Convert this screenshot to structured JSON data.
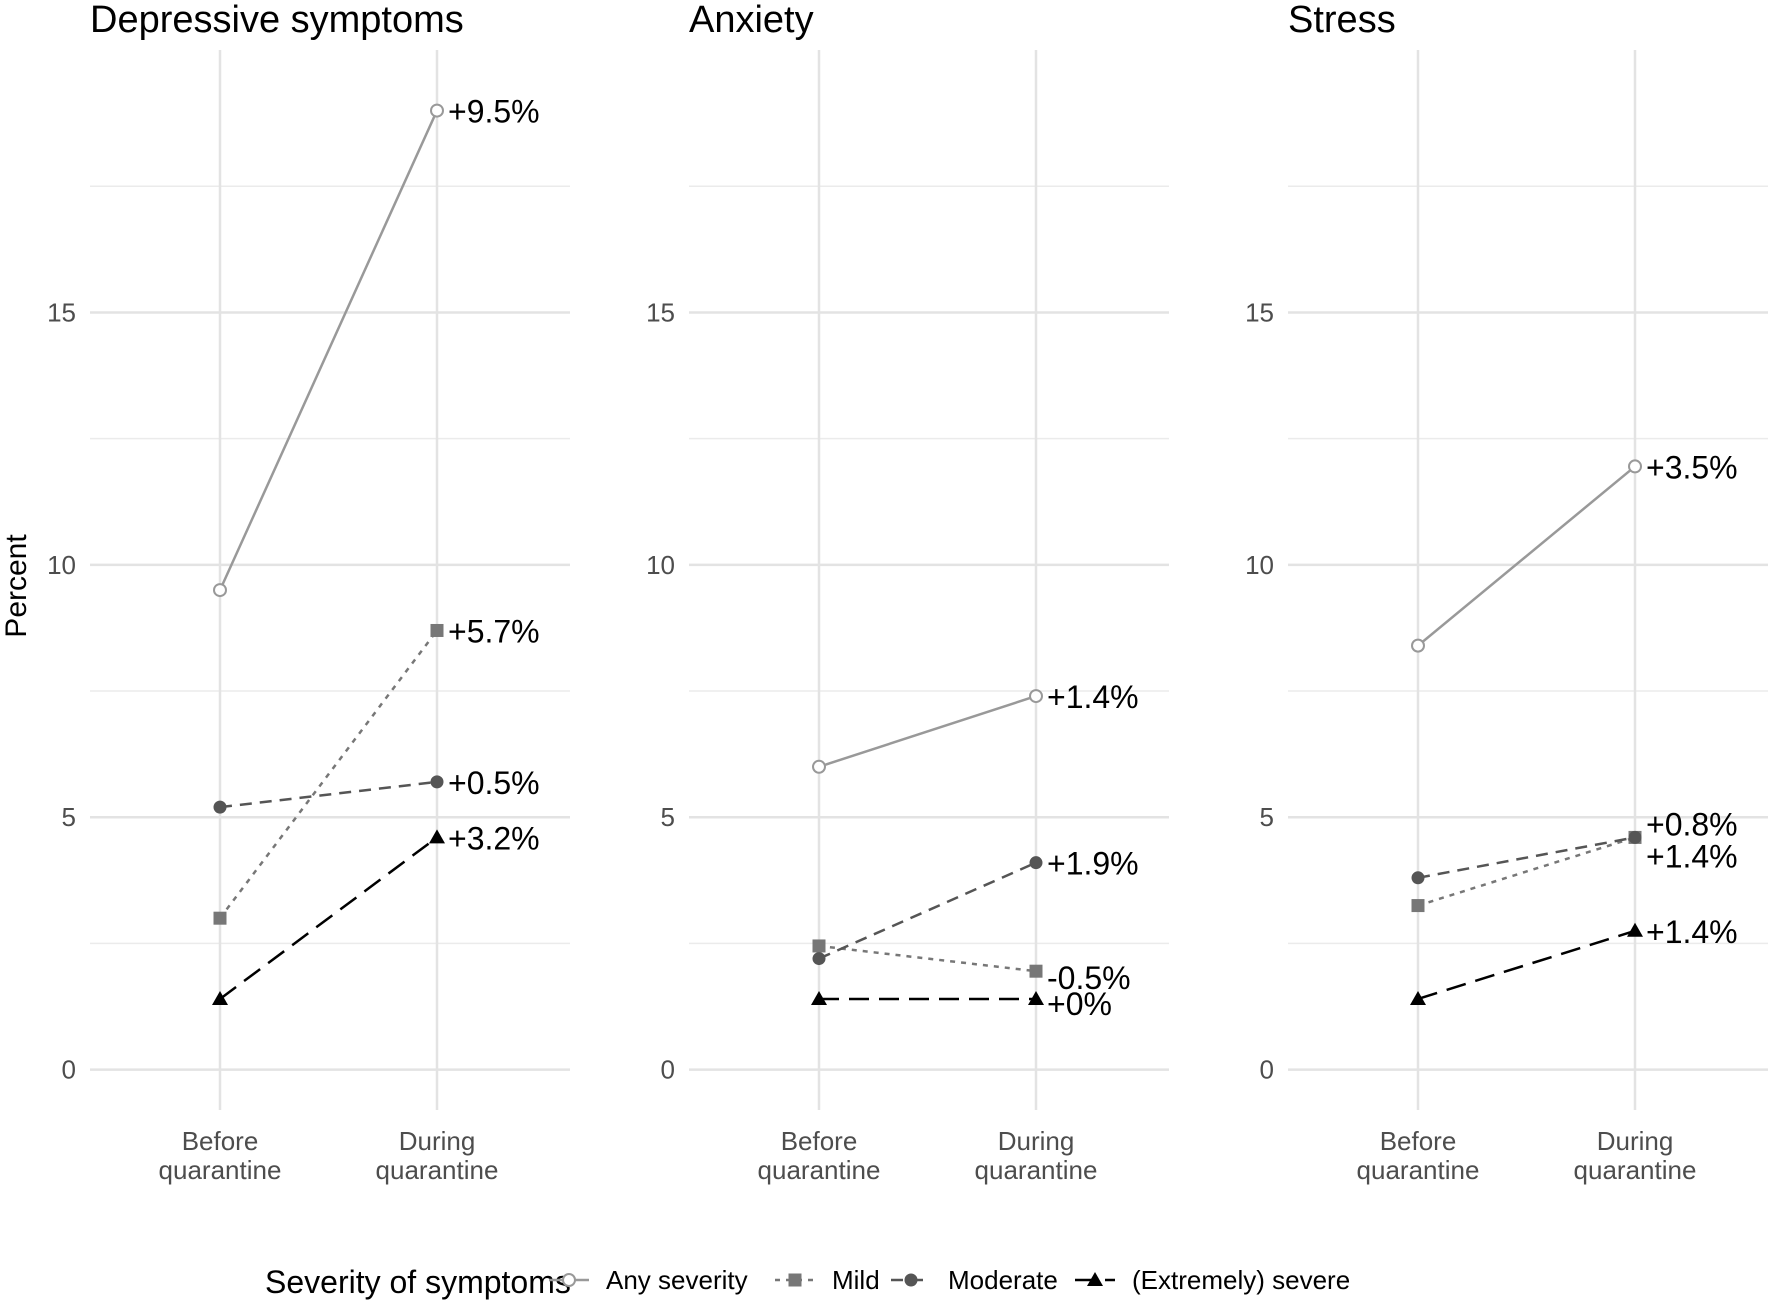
{
  "chart_data": {
    "type": "line",
    "ylabel": "Percent",
    "ylim": [
      -0.8,
      20.2
    ],
    "yticks": [
      0,
      5,
      10,
      15
    ],
    "x": [
      "Before\nquarantine",
      "During\nquarantine"
    ],
    "legend": {
      "title": "Severity of symptoms",
      "position": "bottom",
      "entries": [
        "Any severity",
        "Mild",
        "Moderate",
        "(Extremely) severe"
      ]
    },
    "series_styles": [
      {
        "name": "Any severity",
        "color": "#999999",
        "dash": "none",
        "marker": "open-circle"
      },
      {
        "name": "Mild",
        "color": "#777777",
        "dash": "dotted",
        "marker": "square"
      },
      {
        "name": "Moderate",
        "color": "#555555",
        "dash": "dashed",
        "marker": "filled-circle"
      },
      {
        "name": "(Extremely) severe",
        "color": "#000000",
        "dash": "longdash",
        "marker": "triangle"
      }
    ],
    "panels": [
      {
        "title": "Depressive symptoms",
        "series": [
          {
            "name": "Any severity",
            "values": [
              9.5,
              19.0
            ],
            "label": "+9.5%"
          },
          {
            "name": "Mild",
            "values": [
              3.0,
              8.7
            ],
            "label": "+5.7%"
          },
          {
            "name": "Moderate",
            "values": [
              5.2,
              5.7
            ],
            "label": "+0.5%"
          },
          {
            "name": "(Extremely) severe",
            "values": [
              1.4,
              4.6
            ],
            "label": "+3.2%"
          }
        ]
      },
      {
        "title": "Anxiety",
        "series": [
          {
            "name": "Any severity",
            "values": [
              6.0,
              7.4
            ],
            "label": "+1.4%"
          },
          {
            "name": "Mild",
            "values": [
              2.45,
              1.95
            ],
            "label": "-0.5%"
          },
          {
            "name": "Moderate",
            "values": [
              2.2,
              4.1
            ],
            "label": "+1.9%"
          },
          {
            "name": "(Extremely) severe",
            "values": [
              1.4,
              1.4
            ],
            "label": "+0%"
          }
        ]
      },
      {
        "title": "Stress",
        "series": [
          {
            "name": "Any severity",
            "values": [
              8.4,
              11.95
            ],
            "label": "+3.5%"
          },
          {
            "name": "Mild",
            "values": [
              3.25,
              4.6
            ],
            "label": "+1.4%"
          },
          {
            "name": "Moderate",
            "values": [
              3.8,
              4.6
            ],
            "label": "+0.8%"
          },
          {
            "name": "(Extremely) severe",
            "values": [
              1.4,
              2.75
            ],
            "label": "+1.4%"
          }
        ]
      }
    ]
  }
}
